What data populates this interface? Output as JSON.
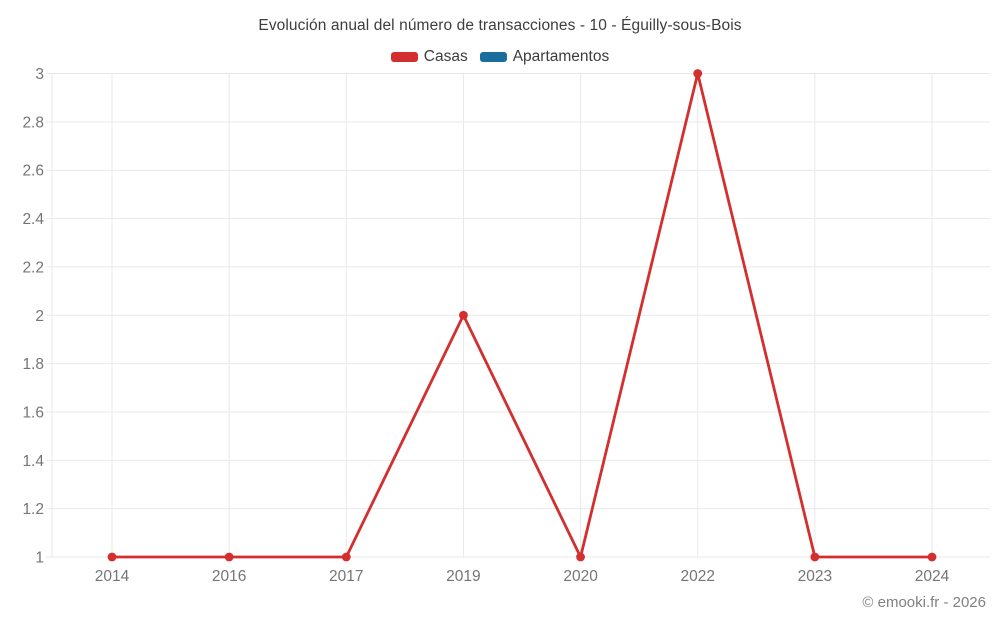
{
  "chart_data": {
    "type": "line",
    "title": "Evolución anual del número de transacciones - 10 - Éguilly-sous-Bois",
    "categories": [
      "2014",
      "2016",
      "2017",
      "2019",
      "2020",
      "2022",
      "2023",
      "2024"
    ],
    "series": [
      {
        "name": "Casas",
        "color": "#d32f2f",
        "values": [
          1,
          1,
          1,
          2,
          1,
          3,
          1,
          1
        ]
      },
      {
        "name": "Apartamentos",
        "color": "#1a6e9e",
        "values": []
      }
    ],
    "ylim": [
      1,
      3
    ],
    "ytick_step": 0.2,
    "ytick_labels": [
      "1",
      "1.2",
      "1.4",
      "1.6",
      "1.8",
      "2",
      "2.2",
      "2.4",
      "2.6",
      "2.8",
      "3"
    ],
    "xlabel": "",
    "ylabel": "",
    "grid": true,
    "legend_position": "top",
    "grid_color": "#e9e9e9",
    "tick_label_color": "#757575",
    "title_color": "#3d3d3d"
  },
  "footer": {
    "copyright": "© emooki.fr - 2026"
  }
}
